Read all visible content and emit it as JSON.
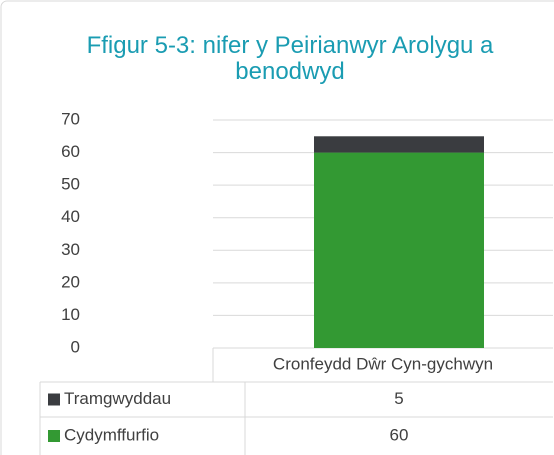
{
  "chart_data": {
    "type": "stacked_bar",
    "title": "Ffigur 5-3: nifer y Peirianwyr Arolygu a benodwyd",
    "categories": [
      "Cronfeydd Dŵr Cyn-gychwyn"
    ],
    "series": [
      {
        "name": "Cydymffurfio",
        "color": "#339933",
        "values": [
          60
        ]
      },
      {
        "name": "Tramgwyddau",
        "color": "#3a3c40",
        "values": [
          5
        ]
      }
    ],
    "ylim": [
      0,
      70
    ],
    "yticks": [
      0,
      10,
      20,
      30,
      40,
      50,
      60,
      70
    ],
    "grid": true
  }
}
